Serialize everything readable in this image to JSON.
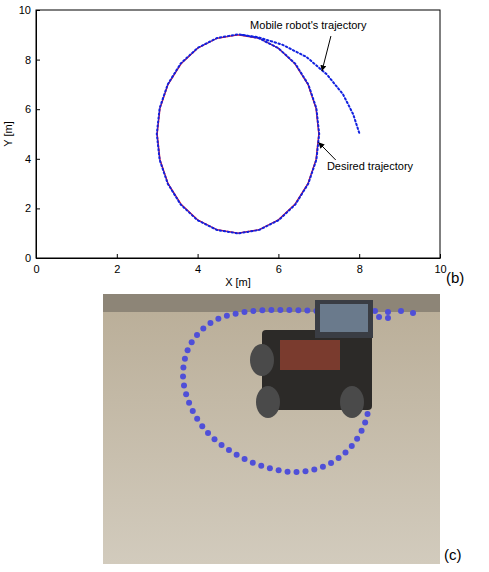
{
  "chart_data": {
    "type": "line",
    "panel_label": "(b)",
    "x_label": "X [m]",
    "y_label": "Y [m]",
    "xlim": [
      0,
      10
    ],
    "ylim": [
      0,
      10
    ],
    "xticks": [
      0,
      2,
      4,
      6,
      8,
      10
    ],
    "yticks": [
      0,
      2,
      4,
      6,
      8,
      10
    ],
    "grid": false,
    "annotations": [
      {
        "text": "Mobile robot's trajectory"
      },
      {
        "text": "Desired trajectory"
      }
    ],
    "series": [
      {
        "name": "Desired trajectory",
        "color": "#d01030",
        "line_style": "solid",
        "x": [
          7,
          6.93,
          6.73,
          6.41,
          6,
          5.52,
          5,
          4.48,
          4,
          3.59,
          3.27,
          3.07,
          3,
          3.07,
          3.27,
          3.59,
          4,
          4.48,
          5,
          5.52,
          6,
          6.41,
          6.73,
          6.93,
          7
        ],
        "values": [
          5,
          6.04,
          7,
          7.83,
          8.46,
          8.86,
          9,
          8.86,
          8.46,
          7.83,
          7,
          6.04,
          5,
          3.96,
          3,
          2.17,
          1.54,
          1.14,
          1,
          1.14,
          1.54,
          2.17,
          3,
          3.96,
          5
        ]
      },
      {
        "name": "Mobile robot's trajectory",
        "color": "#1020e0",
        "line_style": "dotted",
        "x": [
          8,
          7.85,
          7.6,
          7.2,
          6.7,
          6.1,
          5.5,
          5,
          4.48,
          4,
          3.58,
          3.26,
          3.06,
          2.99,
          3.06,
          3.26,
          3.58,
          3.99,
          4.48,
          5,
          5.52,
          6.01,
          6.42,
          6.74,
          6.94,
          7.01,
          6.94,
          6.74,
          6.42,
          6,
          5.52,
          5.1
        ],
        "values": [
          5.05,
          5.8,
          6.6,
          7.4,
          8.1,
          8.6,
          8.9,
          9.02,
          8.87,
          8.47,
          7.84,
          7,
          6.04,
          5,
          3.96,
          3,
          2.16,
          1.53,
          1.13,
          0.99,
          1.13,
          1.53,
          2.16,
          3,
          3.96,
          5,
          6.04,
          7,
          7.83,
          8.46,
          8.86,
          9
        ]
      }
    ]
  },
  "photo": {
    "panel_label": "(c)"
  }
}
